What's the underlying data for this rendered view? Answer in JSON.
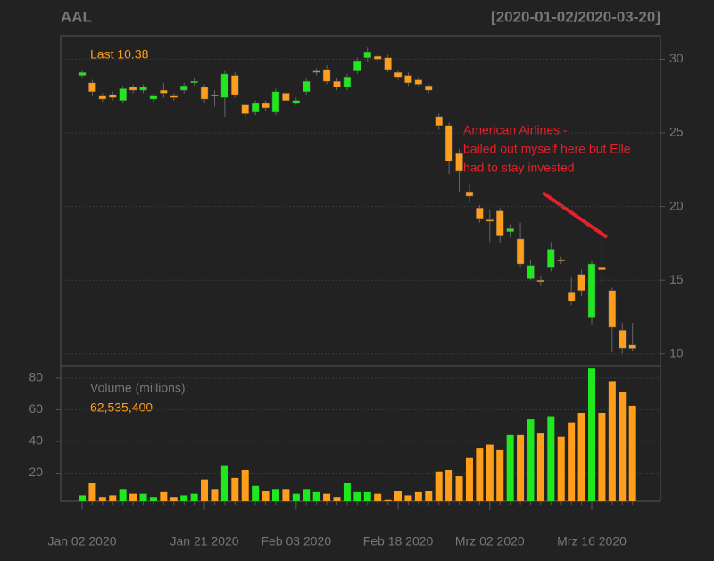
{
  "chart_data": [
    {
      "type": "candlestick",
      "title": "AAL",
      "subtitle": "[2020-01-02/2020-03-20]",
      "last_label": "Last 10.38",
      "annotation": [
        "American Airlines -",
        "bailed out myself here but Elle",
        "had to stay invested"
      ],
      "annotation_color": "#e8202a",
      "up_color": "#1fe81f",
      "down_color": "#ff9e1b",
      "open": [
        28.9,
        28.4,
        27.5,
        27.6,
        27.2,
        28.1,
        27.9,
        27.3,
        27.9,
        27.5,
        27.9,
        28.4,
        28.1,
        27.6,
        27.4,
        28.9,
        26.9,
        26.4,
        27.0,
        26.4,
        27.7,
        27.0,
        27.8,
        29.1,
        29.3,
        28.5,
        28.1,
        29.2,
        30.1,
        30.2,
        30.1,
        29.1,
        28.9,
        28.6,
        28.2,
        26.1,
        25.5,
        23.6,
        21.0,
        19.9,
        19.1,
        19.7,
        18.3,
        17.8,
        15.1,
        15.0,
        15.9,
        16.4,
        14.2,
        15.4,
        12.5,
        15.9,
        14.3,
        11.6,
        10.6
      ],
      "high": [
        29.3,
        28.6,
        27.7,
        27.8,
        28.2,
        28.3,
        28.3,
        27.7,
        28.4,
        27.7,
        28.4,
        28.7,
        28.3,
        27.9,
        29.2,
        29.1,
        27.1,
        27.2,
        27.2,
        28.0,
        27.9,
        27.4,
        28.7,
        29.4,
        29.6,
        28.7,
        29.0,
        30.1,
        30.8,
        30.3,
        30.3,
        29.3,
        29.1,
        28.8,
        28.3,
        26.3,
        25.7,
        23.9,
        21.6,
        20.1,
        19.8,
        19.9,
        18.8,
        18.9,
        16.4,
        15.3,
        17.6,
        16.6,
        15.2,
        15.7,
        16.3,
        18.5,
        14.5,
        12.1,
        12.1
      ],
      "low": [
        28.7,
        27.5,
        27.1,
        27.2,
        27.0,
        27.7,
        27.7,
        27.1,
        27.4,
        27.2,
        27.7,
        28.2,
        27.0,
        26.8,
        26.1,
        27.4,
        25.8,
        26.2,
        26.5,
        26.2,
        27.0,
        26.9,
        27.6,
        28.9,
        28.3,
        27.9,
        27.9,
        29.0,
        29.8,
        29.8,
        29.1,
        28.6,
        28.2,
        28.1,
        27.7,
        25.2,
        22.2,
        21.0,
        20.3,
        18.9,
        17.6,
        17.5,
        17.9,
        15.9,
        15.0,
        14.6,
        15.6,
        16.1,
        13.3,
        13.9,
        12.0,
        14.8,
        10.1,
        10.0,
        10.2
      ],
      "close": [
        29.1,
        27.8,
        27.3,
        27.4,
        28.0,
        27.9,
        28.1,
        27.5,
        27.7,
        27.4,
        28.2,
        28.5,
        27.3,
        27.5,
        29.0,
        27.6,
        26.3,
        27.0,
        26.7,
        27.8,
        27.2,
        27.2,
        28.5,
        29.2,
        28.5,
        28.1,
        28.8,
        29.9,
        30.5,
        30.0,
        29.3,
        28.8,
        28.4,
        28.3,
        27.9,
        25.5,
        23.1,
        22.4,
        20.7,
        19.2,
        19.0,
        18.0,
        18.5,
        16.1,
        16.0,
        14.9,
        17.1,
        16.3,
        13.6,
        14.3,
        16.1,
        15.7,
        11.8,
        10.4,
        10.38
      ],
      "ylim": [
        9.2,
        31.6
      ],
      "yticks": [
        10,
        15,
        20,
        25,
        30
      ],
      "grid": true
    },
    {
      "type": "bar",
      "label": "Volume (millions):",
      "last_label": "62,535,400",
      "categories": [
        "Jan 02 2020",
        null,
        null,
        null,
        null,
        null,
        null,
        null,
        null,
        null,
        null,
        null,
        "Jan 21 2020",
        null,
        null,
        null,
        null,
        null,
        null,
        null,
        null,
        "Feb 03 2020",
        null,
        null,
        null,
        null,
        null,
        null,
        null,
        null,
        null,
        "Feb 18 2020",
        null,
        null,
        null,
        null,
        null,
        null,
        null,
        null,
        "Mrz 02 2020",
        null,
        null,
        null,
        null,
        null,
        null,
        null,
        null,
        null,
        "Mrz 16 2020",
        null,
        null,
        null,
        null
      ],
      "values": [
        6,
        14,
        5,
        6,
        10,
        7,
        7,
        5,
        8,
        5,
        6,
        7,
        16,
        10,
        25,
        17,
        22,
        12,
        9,
        10,
        10,
        7,
        10,
        8,
        7,
        5,
        14,
        8,
        8,
        7,
        3,
        9,
        6,
        8,
        9,
        21,
        22,
        18,
        30,
        36,
        38,
        35,
        44,
        44,
        54,
        45,
        56,
        43,
        52,
        58,
        86,
        58,
        78,
        71,
        62.5354
      ],
      "ylim": [
        2.3,
        87.8
      ],
      "yticks": [
        20,
        40,
        60,
        80
      ],
      "grid": true
    }
  ]
}
